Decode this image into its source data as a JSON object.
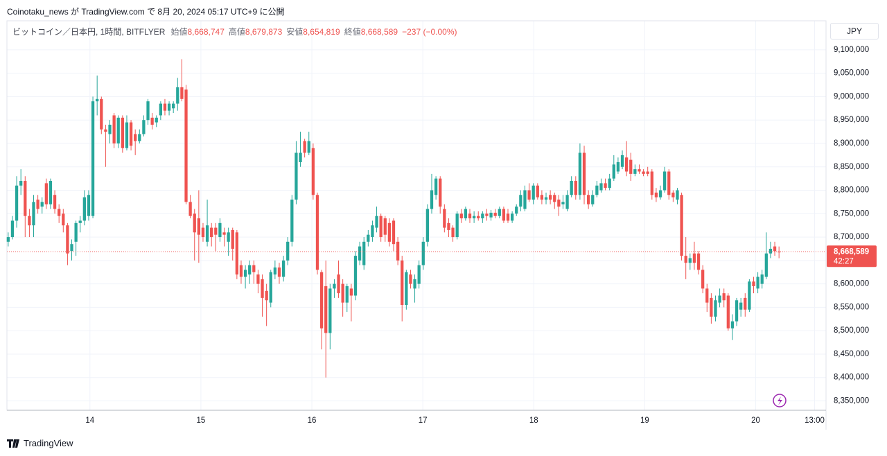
{
  "header": {
    "publisher": "Coinotaku_news が TradingView.com で 8月 20, 2024 05:17 UTC+9 に公開"
  },
  "legend": {
    "symbol": "ビットコイン／日本円, 1時間, BITFLYER",
    "fields": [
      {
        "label": "始値",
        "value": "8,668,747"
      },
      {
        "label": "高値",
        "value": "8,679,873"
      },
      {
        "label": "安値",
        "value": "8,654,819"
      },
      {
        "label": "終値",
        "value": "8,668,589"
      }
    ],
    "change": "−237 (−0.00%)"
  },
  "currency": "JPY",
  "footer": {
    "brand": "TradingView"
  },
  "chart_data": {
    "type": "candlestick",
    "up_color": "#26a69a",
    "down_color": "#ef5350",
    "grid": true,
    "ylim": [
      8330000,
      9162000
    ],
    "yticks": [
      {
        "value": 8350000,
        "label": "8,350,000"
      },
      {
        "value": 8400000,
        "label": "8,400,000"
      },
      {
        "value": 8450000,
        "label": "8,450,000"
      },
      {
        "value": 8500000,
        "label": "8,500,000"
      },
      {
        "value": 8550000,
        "label": "8,550,000"
      },
      {
        "value": 8600000,
        "label": "8,600,000"
      },
      {
        "value": 8650000,
        "label": "8,650,000"
      },
      {
        "value": 8700000,
        "label": "8,700,000"
      },
      {
        "value": 8750000,
        "label": "8,750,000"
      },
      {
        "value": 8800000,
        "label": "8,800,000"
      },
      {
        "value": 8850000,
        "label": "8,850,000"
      },
      {
        "value": 8900000,
        "label": "8,900,000"
      },
      {
        "value": 8950000,
        "label": "8,950,000"
      },
      {
        "value": 9000000,
        "label": "9,000,000"
      },
      {
        "value": 9050000,
        "label": "9,050,000"
      },
      {
        "value": 9100000,
        "label": "9,100,000"
      }
    ],
    "xlim": [
      -0.3,
      193.1
    ],
    "xticks": [
      {
        "value": 19.3,
        "label": "14"
      },
      {
        "value": 45.5,
        "label": "15"
      },
      {
        "value": 71.7,
        "label": "16"
      },
      {
        "value": 97.9,
        "label": "17"
      },
      {
        "value": 124.1,
        "label": "18"
      },
      {
        "value": 150.3,
        "label": "19"
      },
      {
        "value": 176.5,
        "label": "20"
      },
      {
        "value": 190.4,
        "label": "13:00"
      }
    ],
    "last_price": {
      "value": 8668589,
      "label": "8,668,589",
      "countdown": "42:27"
    },
    "candles": [
      [
        8690000,
        8710000,
        8680000,
        8700000
      ],
      [
        8700000,
        8745000,
        8695000,
        8735000
      ],
      [
        8735000,
        8830000,
        8720000,
        8810000
      ],
      [
        8810000,
        8845000,
        8790000,
        8820000
      ],
      [
        8820000,
        8830000,
        8700000,
        8745000
      ],
      [
        8745000,
        8760000,
        8700000,
        8725000
      ],
      [
        8725000,
        8790000,
        8700000,
        8775000
      ],
      [
        8780000,
        8790000,
        8750000,
        8760000
      ],
      [
        8765000,
        8785000,
        8750000,
        8775000
      ],
      [
        8815000,
        8825000,
        8760000,
        8770000
      ],
      [
        8770000,
        8825000,
        8760000,
        8820000
      ],
      [
        8790000,
        8800000,
        8750000,
        8760000
      ],
      [
        8760000,
        8770000,
        8730000,
        8745000
      ],
      [
        8750000,
        8760000,
        8710000,
        8725000
      ],
      [
        8725000,
        8730000,
        8640000,
        8665000
      ],
      [
        8670000,
        8695000,
        8650000,
        8685000
      ],
      [
        8690000,
        8735000,
        8660000,
        8730000
      ],
      [
        8730000,
        8745000,
        8710000,
        8735000
      ],
      [
        8735000,
        8800000,
        8725000,
        8785000
      ],
      [
        8745000,
        8800000,
        8735000,
        8790000
      ],
      [
        8745000,
        9000000,
        8740000,
        8990000
      ],
      [
        8990000,
        9045000,
        8960000,
        8995000
      ],
      [
        8995000,
        9000000,
        8920000,
        8930000
      ],
      [
        8930000,
        8940000,
        8850000,
        8925000
      ],
      [
        8920000,
        8950000,
        8900000,
        8940000
      ],
      [
        8960000,
        8965000,
        8890000,
        8900000
      ],
      [
        8900000,
        8960000,
        8890000,
        8955000
      ],
      [
        8955000,
        8960000,
        8880000,
        8890000
      ],
      [
        8890000,
        8960000,
        8885000,
        8945000
      ],
      [
        8945000,
        8950000,
        8885000,
        8895000
      ],
      [
        8920000,
        8930000,
        8875000,
        8905000
      ],
      [
        8905000,
        8930000,
        8900000,
        8920000
      ],
      [
        8920000,
        8960000,
        8915000,
        8950000
      ],
      [
        8950000,
        8995000,
        8940000,
        8990000
      ],
      [
        8955000,
        8965000,
        8930000,
        8940000
      ],
      [
        8945000,
        8960000,
        8935000,
        8955000
      ],
      [
        8960000,
        8990000,
        8950000,
        8985000
      ],
      [
        8985000,
        8995000,
        8960000,
        8970000
      ],
      [
        8970000,
        8990000,
        8960000,
        8985000
      ],
      [
        8975000,
        8990000,
        8965000,
        8985000
      ],
      [
        8985000,
        9040000,
        8970000,
        9020000
      ],
      [
        9020000,
        9080000,
        8990000,
        8995000
      ],
      [
        9015000,
        9025000,
        8770000,
        8775000
      ],
      [
        8775000,
        8790000,
        8740000,
        8745000
      ],
      [
        8750000,
        8760000,
        8650000,
        8710000
      ],
      [
        8740000,
        8800000,
        8645000,
        8705000
      ],
      [
        8720000,
        8730000,
        8690000,
        8700000
      ],
      [
        8690000,
        8780000,
        8680000,
        8725000
      ],
      [
        8720000,
        8730000,
        8680000,
        8700000
      ],
      [
        8720000,
        8730000,
        8670000,
        8705000
      ],
      [
        8700000,
        8740000,
        8690000,
        8730000
      ],
      [
        8710000,
        8720000,
        8680000,
        8705000
      ],
      [
        8690000,
        8720000,
        8660000,
        8710000
      ],
      [
        8715000,
        8720000,
        8650000,
        8675000
      ],
      [
        8710000,
        8715000,
        8610000,
        8620000
      ],
      [
        8640000,
        8650000,
        8600000,
        8615000
      ],
      [
        8615000,
        8640000,
        8590000,
        8630000
      ],
      [
        8620000,
        8650000,
        8600000,
        8640000
      ],
      [
        8640000,
        8650000,
        8600000,
        8625000
      ],
      [
        8620000,
        8630000,
        8580000,
        8600000
      ],
      [
        8610000,
        8620000,
        8530000,
        8570000
      ],
      [
        8585000,
        8600000,
        8510000,
        8565000
      ],
      [
        8560000,
        8630000,
        8550000,
        8625000
      ],
      [
        8620000,
        8650000,
        8610000,
        8635000
      ],
      [
        8635000,
        8645000,
        8600000,
        8615000
      ],
      [
        8615000,
        8660000,
        8605000,
        8650000
      ],
      [
        8650000,
        8700000,
        8640000,
        8690000
      ],
      [
        8690000,
        8790000,
        8680000,
        8780000
      ],
      [
        8780000,
        8905000,
        8770000,
        8880000
      ],
      [
        8860000,
        8925000,
        8850000,
        8880000
      ],
      [
        8905000,
        8910000,
        8870000,
        8880000
      ],
      [
        8880000,
        8925000,
        8875000,
        8905000
      ],
      [
        8890000,
        8900000,
        8780000,
        8790000
      ],
      [
        8790000,
        8795000,
        8620000,
        8630000
      ],
      [
        8625000,
        8630000,
        8460000,
        8505000
      ],
      [
        8595000,
        8650000,
        8400000,
        8495000
      ],
      [
        8495000,
        8600000,
        8460000,
        8590000
      ],
      [
        8590000,
        8610000,
        8570000,
        8600000
      ],
      [
        8620000,
        8650000,
        8570000,
        8580000
      ],
      [
        8600000,
        8610000,
        8530000,
        8560000
      ],
      [
        8560000,
        8600000,
        8540000,
        8595000
      ],
      [
        8590000,
        8600000,
        8520000,
        8575000
      ],
      [
        8575000,
        8670000,
        8565000,
        8660000
      ],
      [
        8650000,
        8690000,
        8640000,
        8680000
      ],
      [
        8640000,
        8700000,
        8630000,
        8690000
      ],
      [
        8690000,
        8715000,
        8680000,
        8705000
      ],
      [
        8700000,
        8735000,
        8690000,
        8725000
      ],
      [
        8720000,
        8765000,
        8710000,
        8745000
      ],
      [
        8745000,
        8750000,
        8690000,
        8700000
      ],
      [
        8740000,
        8745000,
        8690000,
        8705000
      ],
      [
        8730000,
        8740000,
        8680000,
        8690000
      ],
      [
        8735000,
        8740000,
        8670000,
        8685000
      ],
      [
        8690000,
        8700000,
        8640000,
        8650000
      ],
      [
        8650000,
        8660000,
        8520000,
        8555000
      ],
      [
        8555000,
        8630000,
        8545000,
        8625000
      ],
      [
        8620000,
        8630000,
        8590000,
        8600000
      ],
      [
        8590000,
        8620000,
        8560000,
        8610000
      ],
      [
        8600000,
        8650000,
        8590000,
        8640000
      ],
      [
        8640000,
        8700000,
        8630000,
        8690000
      ],
      [
        8690000,
        8770000,
        8680000,
        8760000
      ],
      [
        8760000,
        8835000,
        8750000,
        8800000
      ],
      [
        8790000,
        8830000,
        8780000,
        8825000
      ],
      [
        8825000,
        8830000,
        8750000,
        8765000
      ],
      [
        8760000,
        8770000,
        8710000,
        8720000
      ],
      [
        8730000,
        8740000,
        8700000,
        8715000
      ],
      [
        8720000,
        8725000,
        8690000,
        8700000
      ],
      [
        8700000,
        8755000,
        8695000,
        8750000
      ],
      [
        8750000,
        8760000,
        8730000,
        8740000
      ],
      [
        8740000,
        8765000,
        8735000,
        8760000
      ],
      [
        8750000,
        8760000,
        8730000,
        8740000
      ],
      [
        8740000,
        8755000,
        8730000,
        8745000
      ],
      [
        8745000,
        8755000,
        8735000,
        8740000
      ],
      [
        8740000,
        8755000,
        8730000,
        8750000
      ],
      [
        8750000,
        8760000,
        8735000,
        8745000
      ],
      [
        8742000,
        8758000,
        8735000,
        8752000
      ],
      [
        8752000,
        8760000,
        8740000,
        8745000
      ],
      [
        8745000,
        8765000,
        8740000,
        8760000
      ],
      [
        8760000,
        8765000,
        8730000,
        8735000
      ],
      [
        8750000,
        8760000,
        8730000,
        8735000
      ],
      [
        8735000,
        8755000,
        8730000,
        8750000
      ],
      [
        8750000,
        8770000,
        8745000,
        8765000
      ],
      [
        8765000,
        8800000,
        8755000,
        8790000
      ],
      [
        8760000,
        8810000,
        8755000,
        8800000
      ],
      [
        8800000,
        8815000,
        8775000,
        8780000
      ],
      [
        8780000,
        8815000,
        8770000,
        8810000
      ],
      [
        8810000,
        8815000,
        8780000,
        8785000
      ],
      [
        8790000,
        8800000,
        8770000,
        8780000
      ],
      [
        8780000,
        8795000,
        8770000,
        8785000
      ],
      [
        8790000,
        8800000,
        8770000,
        8780000
      ],
      [
        8790000,
        8795000,
        8760000,
        8775000
      ],
      [
        8780000,
        8790000,
        8745000,
        8765000
      ],
      [
        8770000,
        8790000,
        8760000,
        8775000
      ],
      [
        8760000,
        8800000,
        8755000,
        8790000
      ],
      [
        8790000,
        8830000,
        8785000,
        8820000
      ],
      [
        8820000,
        8830000,
        8780000,
        8790000
      ],
      [
        8790000,
        8900000,
        8780000,
        8880000
      ],
      [
        8880000,
        8895000,
        8770000,
        8790000
      ],
      [
        8790000,
        8800000,
        8760000,
        8770000
      ],
      [
        8770000,
        8800000,
        8765000,
        8790000
      ],
      [
        8790000,
        8820000,
        8785000,
        8810000
      ],
      [
        8800000,
        8825000,
        8795000,
        8815000
      ],
      [
        8815000,
        8825000,
        8800000,
        8805000
      ],
      [
        8805000,
        8835000,
        8800000,
        8825000
      ],
      [
        8825000,
        8875000,
        8820000,
        8855000
      ],
      [
        8840000,
        8870000,
        8835000,
        8860000
      ],
      [
        8850000,
        8885000,
        8845000,
        8875000
      ],
      [
        8870000,
        8905000,
        8830000,
        8840000
      ],
      [
        8865000,
        8880000,
        8820000,
        8835000
      ],
      [
        8835000,
        8855000,
        8830000,
        8845000
      ],
      [
        8845000,
        8855000,
        8835000,
        8840000
      ],
      [
        8840000,
        8845000,
        8830000,
        8835000
      ],
      [
        8840000,
        8850000,
        8830000,
        8835000
      ],
      [
        8840000,
        8845000,
        8780000,
        8790000
      ],
      [
        8795000,
        8805000,
        8775000,
        8785000
      ],
      [
        8785000,
        8810000,
        8780000,
        8800000
      ],
      [
        8800000,
        8850000,
        8795000,
        8840000
      ],
      [
        8840000,
        8845000,
        8780000,
        8790000
      ],
      [
        8795000,
        8800000,
        8775000,
        8785000
      ],
      [
        8780000,
        8805000,
        8770000,
        8800000
      ],
      [
        8790000,
        8795000,
        8650000,
        8660000
      ],
      [
        8660000,
        8700000,
        8610000,
        8645000
      ],
      [
        8645000,
        8665000,
        8630000,
        8655000
      ],
      [
        8665000,
        8690000,
        8630000,
        8645000
      ],
      [
        8665000,
        8670000,
        8620000,
        8630000
      ],
      [
        8630000,
        8640000,
        8580000,
        8590000
      ],
      [
        8590000,
        8600000,
        8540000,
        8560000
      ],
      [
        8570000,
        8580000,
        8515000,
        8530000
      ],
      [
        8530000,
        8575000,
        8520000,
        8565000
      ],
      [
        8560000,
        8590000,
        8550000,
        8575000
      ],
      [
        8580000,
        8590000,
        8550000,
        8565000
      ],
      [
        8575000,
        8580000,
        8500000,
        8505000
      ],
      [
        8505000,
        8535000,
        8480000,
        8520000
      ],
      [
        8520000,
        8570000,
        8510000,
        8565000
      ],
      [
        8545000,
        8570000,
        8530000,
        8560000
      ],
      [
        8570000,
        8580000,
        8530000,
        8545000
      ],
      [
        8545000,
        8610000,
        8540000,
        8605000
      ],
      [
        8605000,
        8615000,
        8580000,
        8595000
      ],
      [
        8590000,
        8625000,
        8580000,
        8615000
      ],
      [
        8600000,
        8630000,
        8590000,
        8620000
      ],
      [
        8615000,
        8710000,
        8610000,
        8665000
      ],
      [
        8665000,
        8690000,
        8655000,
        8675000
      ],
      [
        8680000,
        8690000,
        8660000,
        8670000
      ],
      [
        8668747,
        8679873,
        8654819,
        8668589
      ]
    ]
  }
}
